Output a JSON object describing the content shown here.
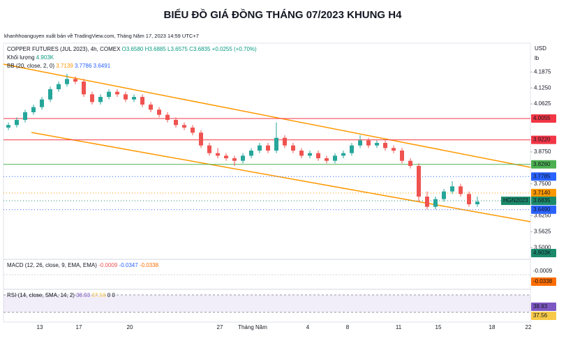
{
  "chart_data": {
    "type": "candlestick",
    "title": "BIỂU ĐỒ GIÁ ĐỒNG THÁNG 07/2023 KHUNG H4",
    "attribution": "khanhhoanguyen xuất bản về TradingView.com, Tháng Năm 17, 2023 14:59 UTC+7",
    "currency": "USD",
    "unit": "lb",
    "legend": {
      "symbol": "COPPER FUTURES (JUL 2023), 4h, COMEX",
      "ohlc": "O3.6580 H3.6885 L3.6575 C3.6835 +0.0255 (+0.70%)",
      "volume_name": "Khối lượng",
      "volume_value": "4.903K",
      "bb_name": "BB (20, close, 2, 0)",
      "bb_values": [
        "3.7139",
        "3.7786",
        "3.6491"
      ],
      "macd_name": "MACD (12, 26, close, 9, EMA, EMA)",
      "macd_values": [
        "-0.0009",
        "-0.0347",
        "-0.0338"
      ],
      "rsi_name": "RSI (14, close, SMA, 14, 2)",
      "rsi_values": [
        "38.93",
        "37.56",
        "0",
        "0"
      ]
    },
    "x_labels": [
      "13",
      "17",
      "20",
      "27",
      "Tháng Năm",
      "4",
      "8",
      "11",
      "15",
      "18",
      "22"
    ],
    "ylim": [
      3.46,
      4.3
    ],
    "yticks": [
      4.1875,
      {
        "value": 4.125,
        "label": "4.1250"
      },
      4.0625,
      {
        "value": 3.875,
        "label": "3.8750"
      },
      {
        "value": 3.75,
        "label": "3.7500"
      },
      {
        "value": 3.625,
        "label": "3.6250"
      },
      3.5625,
      {
        "value": 3.5,
        "label": "3.5000"
      }
    ],
    "levels": [
      {
        "value": 4.0055,
        "color": "#f23645"
      },
      {
        "value": 3.922,
        "label": "3.9220",
        "color": "#f23645"
      },
      {
        "value": 3.826,
        "label": "3.8260",
        "color": "#4caf50"
      }
    ],
    "price_tags": [
      {
        "value": 3.7785,
        "color": "#2962ff"
      },
      {
        "value": 3.714,
        "label": "3.7140",
        "color": "#ff9800"
      },
      {
        "value": 3.6835,
        "color": "#1b8a6b",
        "name": "HGN2023"
      },
      {
        "value": 3.649,
        "label": "3.6490",
        "color": "#2962ff"
      }
    ],
    "side_tags": {
      "volume": "4.903K",
      "macd": [
        "-0.0009",
        "-0.0338"
      ],
      "rsi": [
        "38.93",
        "37.56"
      ]
    },
    "colors": {
      "up": "#26a69a",
      "down": "#ef5350"
    },
    "candles": [
      [
        3.97,
        3.99,
        3.96,
        3.98
      ],
      [
        3.98,
        4.01,
        3.97,
        4.0
      ],
      [
        4.0,
        4.04,
        3.99,
        4.03
      ],
      [
        4.03,
        4.06,
        4.02,
        4.05
      ],
      [
        4.05,
        4.09,
        4.04,
        4.08
      ],
      [
        4.08,
        4.13,
        4.07,
        4.12
      ],
      [
        4.12,
        4.15,
        4.11,
        4.14
      ],
      [
        4.14,
        4.18,
        4.13,
        4.16
      ],
      [
        4.16,
        4.17,
        4.14,
        4.15
      ],
      [
        4.15,
        4.16,
        4.09,
        4.1
      ],
      [
        4.1,
        4.11,
        4.06,
        4.07
      ],
      [
        4.07,
        4.1,
        4.06,
        4.09
      ],
      [
        4.09,
        4.12,
        4.08,
        4.11
      ],
      [
        4.11,
        4.12,
        4.09,
        4.1
      ],
      [
        4.1,
        4.11,
        4.07,
        4.08
      ],
      [
        4.08,
        4.1,
        4.07,
        4.09
      ],
      [
        4.09,
        4.1,
        4.05,
        4.06
      ],
      [
        4.06,
        4.07,
        4.03,
        4.04
      ],
      [
        4.04,
        4.05,
        4.01,
        4.02
      ],
      [
        4.02,
        4.03,
        3.99,
        4.0
      ],
      [
        4.0,
        4.01,
        3.97,
        3.98
      ],
      [
        3.98,
        3.99,
        3.96,
        3.97
      ],
      [
        3.97,
        3.98,
        3.94,
        3.95
      ],
      [
        3.95,
        3.96,
        3.89,
        3.9
      ],
      [
        3.9,
        3.91,
        3.86,
        3.87
      ],
      [
        3.87,
        3.89,
        3.85,
        3.86
      ],
      [
        3.86,
        3.87,
        3.84,
        3.85
      ],
      [
        3.85,
        3.86,
        3.82,
        3.84
      ],
      [
        3.84,
        3.87,
        3.83,
        3.86
      ],
      [
        3.86,
        3.89,
        3.85,
        3.88
      ],
      [
        3.88,
        3.91,
        3.87,
        3.9
      ],
      [
        3.9,
        3.91,
        3.87,
        3.88
      ],
      [
        3.88,
        3.99,
        3.87,
        3.93
      ],
      [
        3.93,
        3.94,
        3.89,
        3.9
      ],
      [
        3.9,
        3.91,
        3.87,
        3.88
      ],
      [
        3.88,
        3.89,
        3.85,
        3.86
      ],
      [
        3.86,
        3.88,
        3.85,
        3.87
      ],
      [
        3.87,
        3.88,
        3.84,
        3.85
      ],
      [
        3.85,
        3.86,
        3.83,
        3.84
      ],
      [
        3.84,
        3.87,
        3.83,
        3.86
      ],
      [
        3.86,
        3.88,
        3.85,
        3.87
      ],
      [
        3.87,
        3.91,
        3.86,
        3.9
      ],
      [
        3.9,
        3.94,
        3.89,
        3.92
      ],
      [
        3.92,
        3.93,
        3.89,
        3.9
      ],
      [
        3.9,
        3.92,
        3.89,
        3.91
      ],
      [
        3.91,
        3.92,
        3.88,
        3.89
      ],
      [
        3.89,
        3.9,
        3.87,
        3.88
      ],
      [
        3.88,
        3.89,
        3.83,
        3.84
      ],
      [
        3.84,
        3.85,
        3.81,
        3.82
      ],
      [
        3.82,
        3.83,
        3.68,
        3.7
      ],
      [
        3.7,
        3.72,
        3.65,
        3.66
      ],
      [
        3.66,
        3.7,
        3.65,
        3.69
      ],
      [
        3.69,
        3.73,
        3.68,
        3.72
      ],
      [
        3.72,
        3.76,
        3.71,
        3.74
      ],
      [
        3.74,
        3.75,
        3.7,
        3.71
      ],
      [
        3.71,
        3.72,
        3.66,
        3.67
      ],
      [
        3.67,
        3.7,
        3.66,
        3.68
      ]
    ]
  }
}
